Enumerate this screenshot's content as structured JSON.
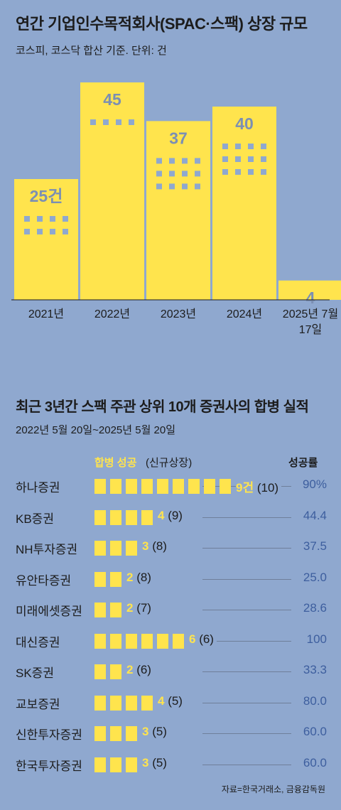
{
  "header": {
    "title": "연간 기업인수목적회사(SPAC·스팩) 상장 규모",
    "subtitle": "코스피, 코스닥 합산 기준. 단위: 건"
  },
  "chart_data": [
    {
      "type": "bar",
      "categories": [
        "2021년",
        "2022년",
        "2023년",
        "2024년",
        "2025년 7월 17일"
      ],
      "values": [
        25,
        45,
        37,
        40,
        4
      ],
      "value_labels": [
        "25건",
        "45",
        "37",
        "40",
        "4"
      ],
      "colors": {
        "bar": "#ffe44d",
        "window": "#8fa8cf",
        "label": "#7b8fb3"
      }
    },
    {
      "type": "bar",
      "title": "최근 3년간 스팩 주관 상위 10개 증권사의 합병 실적",
      "subtitle": "2022년 5월 20일~2025년 5월 20일",
      "legend": {
        "success": "합병 성공",
        "listing": "(신규상장)",
        "rate": "성공률"
      },
      "categories": [
        "하나증권",
        "KB증권",
        "NH투자증권",
        "유안타증권",
        "미래에셋증권",
        "대신증권",
        "SK증권",
        "교보증권",
        "신한투자증권",
        "한국투자증권"
      ],
      "series": [
        {
          "name": "합병 성공",
          "values": [
            9,
            4,
            3,
            2,
            2,
            6,
            2,
            4,
            3,
            3
          ]
        },
        {
          "name": "신규상장",
          "values": [
            10,
            9,
            8,
            8,
            7,
            6,
            6,
            5,
            5,
            5
          ]
        },
        {
          "name": "성공률",
          "values": [
            90,
            44.4,
            37.5,
            25.0,
            28.6,
            100,
            33.3,
            80.0,
            60.0,
            60.0
          ]
        }
      ],
      "success_labels": [
        "9건",
        "4",
        "3",
        "2",
        "2",
        "6",
        "2",
        "4",
        "3",
        "3"
      ],
      "listing_labels": [
        "(10)",
        "(9)",
        "(8)",
        "(8)",
        "(7)",
        "(6)",
        "(6)",
        "(5)",
        "(5)",
        "(5)"
      ],
      "rate_labels": [
        "90%",
        "44.4",
        "37.5",
        "25.0",
        "28.6",
        "100",
        "33.3",
        "80.0",
        "60.0",
        "60.0"
      ],
      "colors": {
        "square": "#ffe44d",
        "rate": "#3d5e9e",
        "line": "#6f7f9a"
      }
    }
  ],
  "source": "자료=한국거래소, 금융감독원"
}
